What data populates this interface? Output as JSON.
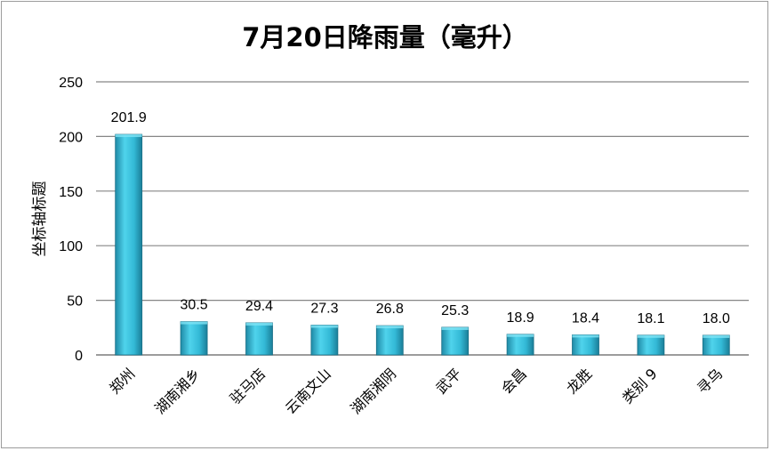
{
  "chart_data": {
    "type": "bar",
    "title": "7月20日降雨量（毫升）",
    "ylabel": "坐标轴标题",
    "xlabel": "",
    "ylim": [
      0,
      250
    ],
    "yticks": [
      "0",
      "50",
      "100",
      "150",
      "200",
      "250"
    ],
    "categories": [
      "郑州",
      "湖南湘乡",
      "驻马店",
      "云南文山",
      "湖南湘阴",
      "武平",
      "会昌",
      "龙胜",
      "类别 9",
      "寻乌"
    ],
    "values": [
      201.9,
      30.5,
      29.4,
      27.3,
      26.8,
      25.3,
      18.9,
      18.4,
      18.1,
      18.0
    ],
    "data_labels": [
      "201.9",
      "30.5",
      "29.4",
      "27.3",
      "26.8",
      "25.3",
      "18.9",
      "18.4",
      "18.1",
      "18.0"
    ],
    "grid": true,
    "legend": "none",
    "colors": {
      "bar_light": "#4fd3ec",
      "bar_mid": "#2bb0cf",
      "bar_dark": "#1a7e98",
      "grid": "#868686"
    }
  }
}
